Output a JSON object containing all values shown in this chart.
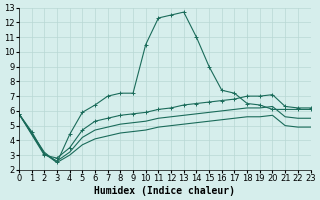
{
  "xlabel": "Humidex (Indice chaleur)",
  "bg_color": "#d6eeec",
  "grid_color": "#b8d8d4",
  "line_color": "#1a6b5a",
  "xlim": [
    0,
    23
  ],
  "ylim": [
    2,
    13
  ],
  "xticks": [
    0,
    1,
    2,
    3,
    4,
    5,
    6,
    7,
    8,
    9,
    10,
    11,
    12,
    13,
    14,
    15,
    16,
    17,
    18,
    19,
    20,
    21,
    22,
    23
  ],
  "yticks": [
    2,
    3,
    4,
    5,
    6,
    7,
    8,
    9,
    10,
    11,
    12,
    13
  ],
  "line1_x": [
    0,
    1,
    2,
    3,
    4,
    5,
    6,
    7,
    8,
    9,
    10,
    11,
    12,
    13,
    14,
    15,
    16,
    17,
    18,
    19,
    20,
    21,
    22,
    23
  ],
  "line1_y": [
    5.8,
    4.6,
    3.1,
    2.5,
    4.4,
    5.9,
    6.4,
    7.0,
    7.2,
    7.2,
    10.5,
    12.3,
    12.5,
    12.7,
    11.0,
    9.0,
    7.4,
    7.2,
    6.5,
    6.4,
    6.1,
    6.1,
    6.1,
    6.1
  ],
  "line2_x": [
    0,
    2,
    3,
    4,
    5,
    6,
    7,
    8,
    9,
    10,
    11,
    12,
    13,
    14,
    15,
    16,
    17,
    18,
    19,
    20,
    21,
    22,
    23
  ],
  "line2_y": [
    5.8,
    3.0,
    2.8,
    3.5,
    4.7,
    5.3,
    5.5,
    5.7,
    5.8,
    5.9,
    6.1,
    6.2,
    6.4,
    6.5,
    6.6,
    6.7,
    6.8,
    7.0,
    7.0,
    7.1,
    6.3,
    6.2,
    6.2
  ],
  "line3_x": [
    0,
    2,
    3,
    4,
    5,
    6,
    7,
    8,
    9,
    10,
    11,
    12,
    13,
    14,
    15,
    16,
    17,
    18,
    19,
    20,
    21,
    22,
    23
  ],
  "line3_y": [
    5.8,
    3.1,
    2.6,
    3.2,
    4.2,
    4.7,
    4.9,
    5.1,
    5.2,
    5.3,
    5.5,
    5.6,
    5.7,
    5.8,
    5.9,
    6.0,
    6.1,
    6.2,
    6.2,
    6.3,
    5.6,
    5.5,
    5.5
  ],
  "line4_x": [
    0,
    2,
    3,
    4,
    5,
    6,
    7,
    8,
    9,
    10,
    11,
    12,
    13,
    14,
    15,
    16,
    17,
    18,
    19,
    20,
    21,
    22,
    23
  ],
  "line4_y": [
    5.8,
    3.2,
    2.5,
    3.0,
    3.7,
    4.1,
    4.3,
    4.5,
    4.6,
    4.7,
    4.9,
    5.0,
    5.1,
    5.2,
    5.3,
    5.4,
    5.5,
    5.6,
    5.6,
    5.7,
    5.0,
    4.9,
    4.9
  ],
  "xlabel_fontsize": 7,
  "tick_fontsize": 6
}
